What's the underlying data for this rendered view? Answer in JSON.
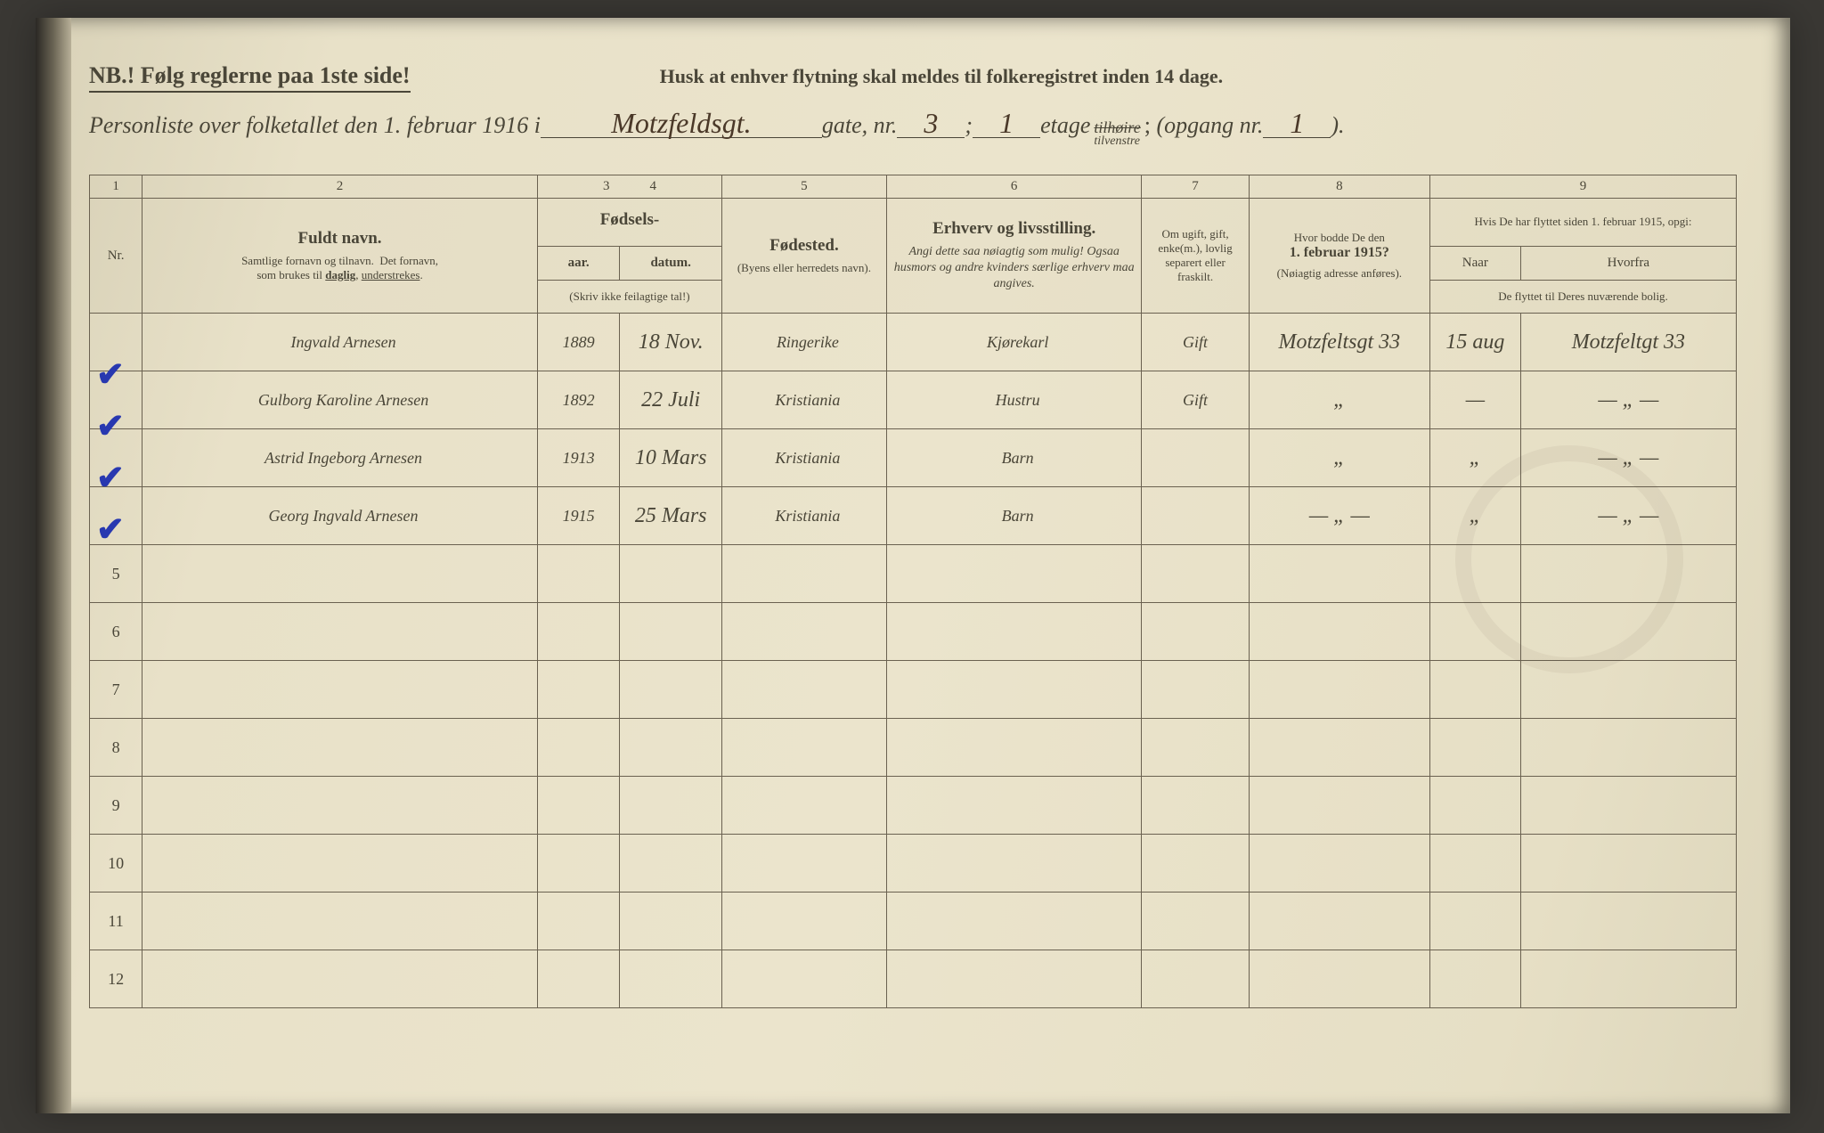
{
  "header": {
    "nb_line": "NB.!  Følg reglerne paa 1ste side!",
    "husk_line": "Husk at enhver flytning skal meldes til folkeregistret inden 14 dage.",
    "personliste_prefix": "Personliste over folketallet den 1. februar 1916 i",
    "street_written": "Motzfeldsgt.",
    "gate_label": "gate, nr.",
    "gate_nr": "3",
    "semicolon": ";",
    "etage_nr": "1",
    "etage_label": "etage",
    "tilheire": "tilhøire",
    "tilvenstre": "tilvenstre",
    "opgang_label": "(opgang nr.",
    "opgang_nr": "1",
    "paren_close": ")."
  },
  "columns": {
    "nums": [
      "1",
      "2",
      "3",
      "4",
      "5",
      "6",
      "7",
      "8",
      "9"
    ],
    "nr": "Nr.",
    "fuldt_navn": "Fuldt navn.",
    "fuldt_sub": "Samtlige fornavn og tilnavn.  Det fornavn, som brukes til daglig, understrekes.",
    "fodsels": "Fødsels-",
    "aar": "aar.",
    "datum": "datum.",
    "aar_note": "(Skriv ikke feilagtige tal!)",
    "fodested": "Fødested.",
    "fodested_sub": "(Byens eller herredets navn).",
    "erhverv": "Erhverv og livsstilling.",
    "erhverv_sub": "Angi dette saa nøiagtig som mulig! Ogsaa husmors og andre kvinders særlige erhverv maa angives.",
    "ugift": "Om ugift, gift, enke(m.), lovlig separert eller fraskilt.",
    "bodde": "Hvor bodde De den",
    "bodde_date": "1. februar 1915?",
    "bodde_sub": "(Nøiagtig adresse anføres).",
    "flyttet": "Hvis De har flyttet siden 1. februar 1915, opgi:",
    "naar": "Naar",
    "hvorfra": "Hvorfra",
    "flyttet_sub": "De flyttet til Deres nuværende bolig."
  },
  "rows": [
    {
      "nr": "",
      "check": "✔",
      "name": "Ingvald Arnesen",
      "year": "1889",
      "date": "18 Nov.",
      "place": "Ringerike",
      "occ": "Kjørekarl",
      "status": "Gift",
      "addr": "Motzfeltsgt 33",
      "naar": "15 aug",
      "fra": "Motzfeltgt 33"
    },
    {
      "nr": "",
      "check": "✔",
      "name": "Gulborg Karoline Arnesen",
      "year": "1892",
      "date": "22 Juli",
      "place": "Kristiania",
      "occ": "Hustru",
      "status": "Gift",
      "addr": "„",
      "naar": "—",
      "fra": "— „ —"
    },
    {
      "nr": "",
      "check": "✔",
      "name": "Astrid Ingeborg Arnesen",
      "year": "1913",
      "date": "10 Mars",
      "place": "Kristiania",
      "occ": "Barn",
      "status": "",
      "addr": "„",
      "naar": "„",
      "fra": "— „ —"
    },
    {
      "nr": "",
      "check": "✔",
      "name": "Georg Ingvald Arnesen",
      "year": "1915",
      "date": "25 Mars",
      "place": "Kristiania",
      "occ": "Barn",
      "status": "",
      "addr": "— „ —",
      "naar": "„",
      "fra": "— „ —"
    },
    {
      "nr": "5"
    },
    {
      "nr": "6"
    },
    {
      "nr": "7"
    },
    {
      "nr": "8"
    },
    {
      "nr": "9"
    },
    {
      "nr": "10"
    },
    {
      "nr": "11"
    },
    {
      "nr": "12"
    }
  ],
  "style": {
    "paper_bg": "#ebe4cc",
    "ink": "#3a2f22",
    "print": "#4a4638",
    "rule": "#6a6150",
    "check_color": "#2838b0",
    "hand_font": "Brush Script MT",
    "print_font": "Georgia",
    "header_fontsize_pt": 20,
    "body_fontsize_pt": 14,
    "hand_fontsize_pt": 22,
    "col_widths_pct": [
      3.2,
      24,
      5,
      6.2,
      10,
      15.5,
      6.5,
      11,
      5.5,
      13.1
    ]
  }
}
